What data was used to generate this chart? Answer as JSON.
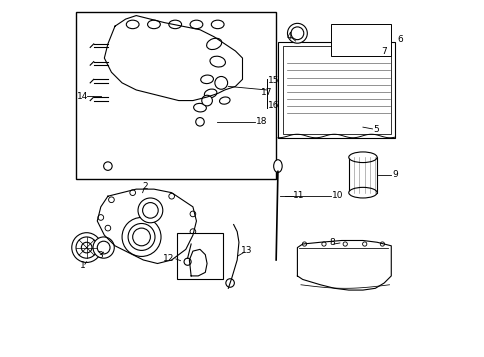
{
  "background_color": "#ffffff",
  "line_color": "#000000",
  "label_color": "#000000",
  "figure_width": 4.85,
  "figure_height": 3.57,
  "dpi": 100
}
